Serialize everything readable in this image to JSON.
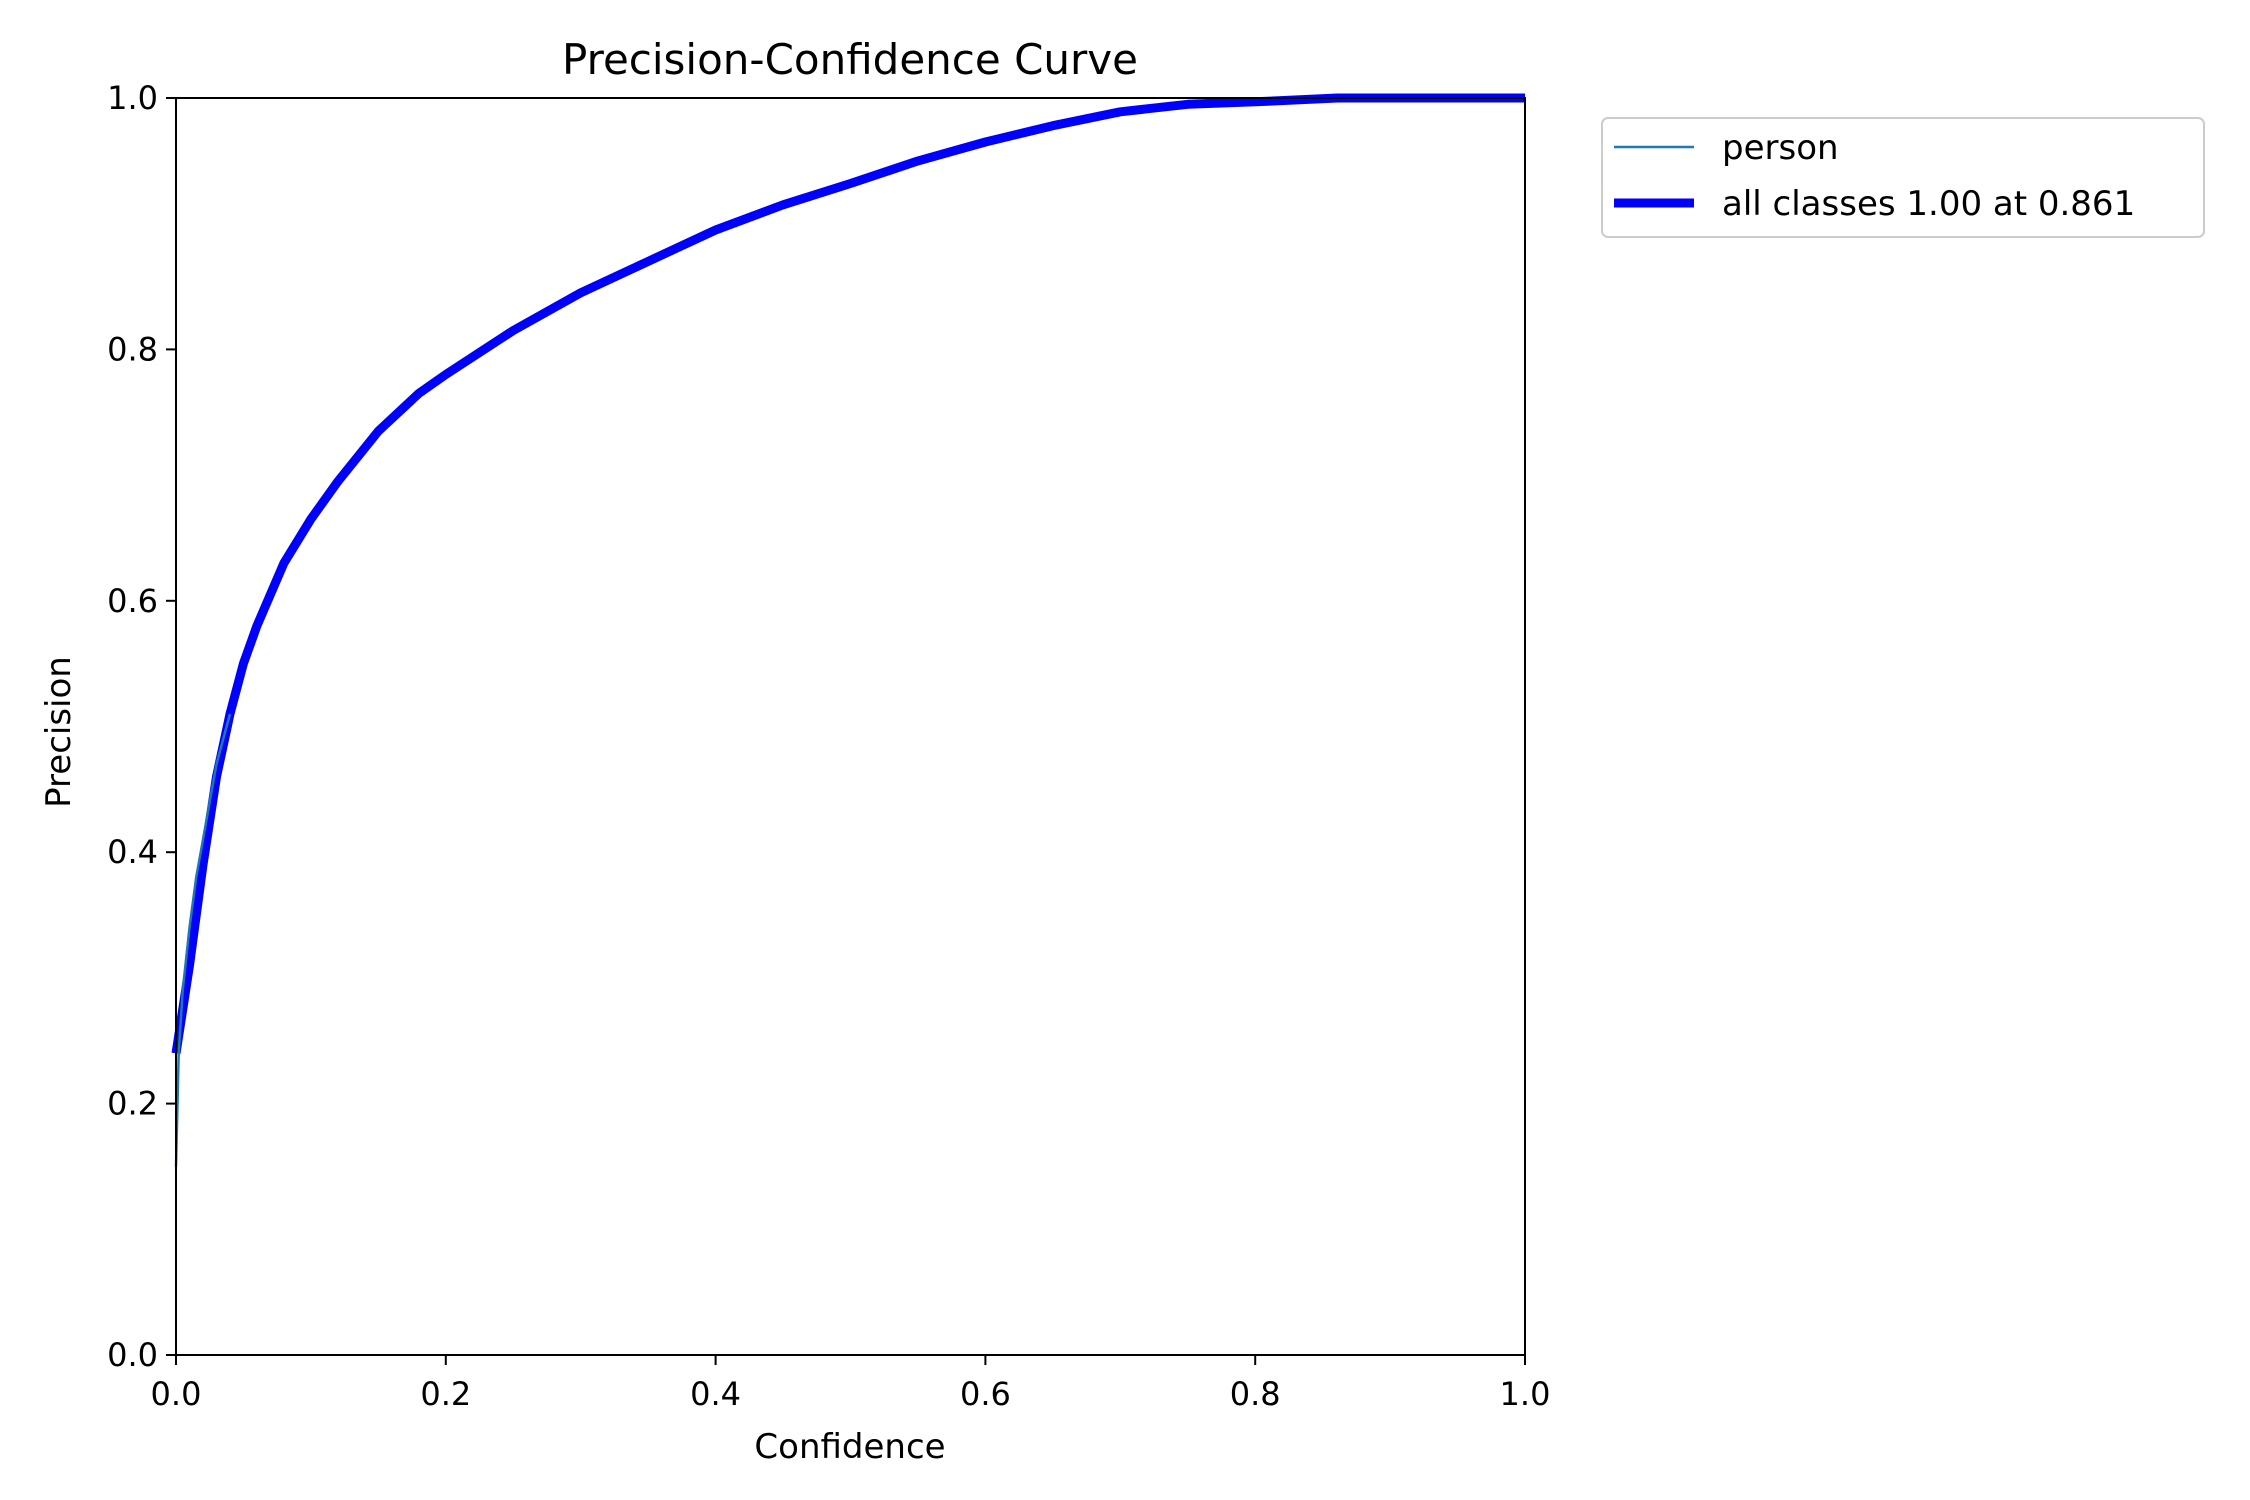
{
  "chart_data": {
    "type": "line",
    "title": "Precision-Confidence Curve",
    "xlabel": "Confidence",
    "ylabel": "Precision",
    "xlim": [
      0.0,
      1.0
    ],
    "ylim": [
      0.0,
      1.0
    ],
    "x_ticks": [
      "0.0",
      "0.2",
      "0.4",
      "0.6",
      "0.8",
      "1.0"
    ],
    "y_ticks": [
      "0.0",
      "0.2",
      "0.4",
      "0.6",
      "0.8",
      "1.0"
    ],
    "grid": false,
    "legend_position": "outside-top-right",
    "series": [
      {
        "name": "person",
        "color": "#1f77b4",
        "style": "thin",
        "x": [
          0.0,
          0.002,
          0.005,
          0.01,
          0.015,
          0.02,
          0.025,
          0.03,
          0.035,
          0.04
        ],
        "y": [
          0.15,
          0.24,
          0.29,
          0.34,
          0.38,
          0.41,
          0.44,
          0.47,
          0.49,
          0.51
        ]
      },
      {
        "name": "all classes 1.00 at 0.861",
        "color": "#0000ff",
        "style": "thick",
        "x": [
          0.0,
          0.01,
          0.02,
          0.03,
          0.04,
          0.05,
          0.06,
          0.08,
          0.1,
          0.12,
          0.15,
          0.18,
          0.2,
          0.25,
          0.3,
          0.35,
          0.4,
          0.45,
          0.5,
          0.55,
          0.6,
          0.65,
          0.7,
          0.75,
          0.8,
          0.861,
          0.9,
          0.95,
          1.0
        ],
        "y": [
          0.24,
          0.31,
          0.39,
          0.46,
          0.51,
          0.55,
          0.58,
          0.63,
          0.665,
          0.695,
          0.735,
          0.765,
          0.78,
          0.815,
          0.845,
          0.87,
          0.895,
          0.915,
          0.932,
          0.95,
          0.965,
          0.978,
          0.989,
          0.995,
          0.997,
          1.0,
          1.0,
          1.0,
          1.0
        ]
      }
    ]
  }
}
